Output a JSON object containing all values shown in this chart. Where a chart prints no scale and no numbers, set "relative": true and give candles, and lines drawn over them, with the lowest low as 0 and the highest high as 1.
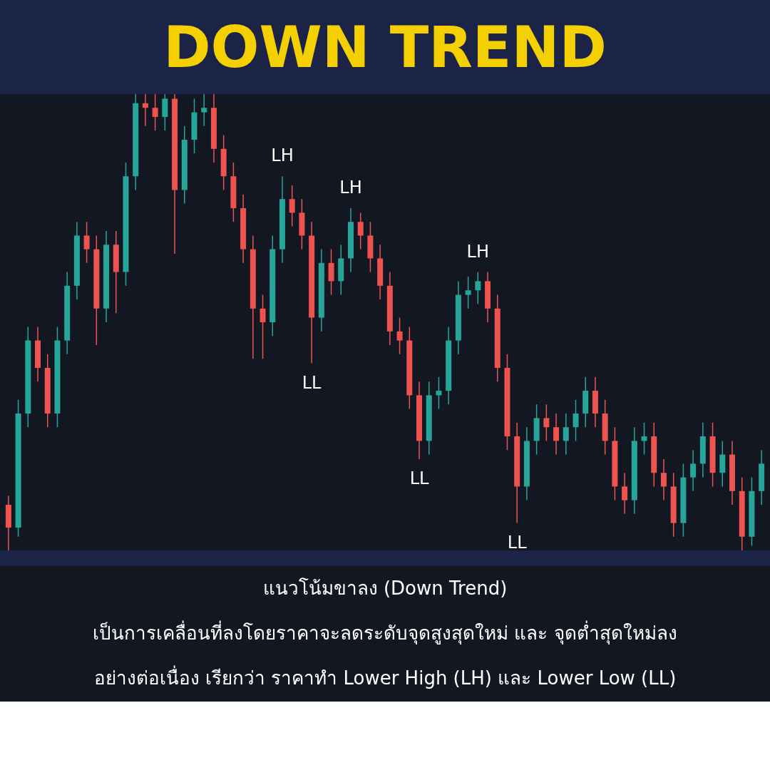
{
  "chart_data": {
    "type": "candlestick",
    "title": "DOWN TREND",
    "relative": true,
    "categories": [
      null,
      null,
      null,
      null,
      null,
      null,
      null,
      null,
      null,
      null,
      null,
      null,
      null,
      null,
      null,
      null,
      null,
      null,
      null,
      null,
      null,
      null,
      null,
      null,
      null,
      null,
      null,
      null,
      null,
      null,
      null,
      null,
      null,
      null,
      null,
      null,
      null,
      null,
      null,
      null,
      null,
      null,
      null,
      null,
      null,
      null,
      null,
      null,
      null,
      null,
      null,
      null,
      null,
      null,
      null,
      null,
      null,
      null,
      null,
      null,
      null,
      null,
      null,
      null,
      null,
      null,
      null,
      null,
      null,
      null,
      null,
      null,
      null,
      null,
      null,
      null,
      null,
      null
    ],
    "ohlc": [
      [
        0.1,
        0.12,
        0.0,
        0.05
      ],
      [
        0.05,
        0.33,
        0.03,
        0.3
      ],
      [
        0.3,
        0.49,
        0.27,
        0.46
      ],
      [
        0.46,
        0.49,
        0.37,
        0.4
      ],
      [
        0.4,
        0.43,
        0.27,
        0.3
      ],
      [
        0.3,
        0.49,
        0.27,
        0.46
      ],
      [
        0.46,
        0.61,
        0.43,
        0.58
      ],
      [
        0.58,
        0.72,
        0.55,
        0.69
      ],
      [
        0.69,
        0.72,
        0.63,
        0.66
      ],
      [
        0.66,
        0.69,
        0.45,
        0.53
      ],
      [
        0.53,
        0.7,
        0.5,
        0.67
      ],
      [
        0.67,
        0.7,
        0.52,
        0.61
      ],
      [
        0.61,
        0.85,
        0.58,
        0.82
      ],
      [
        0.82,
        1.0,
        0.79,
        0.98
      ],
      [
        0.98,
        1.0,
        0.93,
        0.97
      ],
      [
        0.97,
        1.0,
        0.92,
        0.95
      ],
      [
        0.95,
        1.0,
        0.92,
        0.99
      ],
      [
        0.99,
        1.0,
        0.65,
        0.79
      ],
      [
        0.79,
        0.93,
        0.76,
        0.9
      ],
      [
        0.9,
        0.99,
        0.87,
        0.96
      ],
      [
        0.96,
        1.0,
        0.93,
        0.97
      ],
      [
        0.97,
        1.0,
        0.85,
        0.88
      ],
      [
        0.88,
        0.91,
        0.79,
        0.82
      ],
      [
        0.82,
        0.85,
        0.72,
        0.75
      ],
      [
        0.75,
        0.78,
        0.63,
        0.66
      ],
      [
        0.66,
        0.69,
        0.42,
        0.53
      ],
      [
        0.53,
        0.56,
        0.42,
        0.5
      ],
      [
        0.5,
        0.69,
        0.47,
        0.66
      ],
      [
        0.66,
        0.82,
        0.63,
        0.77
      ],
      [
        0.77,
        0.8,
        0.71,
        0.74
      ],
      [
        0.74,
        0.77,
        0.66,
        0.69
      ],
      [
        0.69,
        0.72,
        0.41,
        0.51
      ],
      [
        0.51,
        0.66,
        0.48,
        0.63
      ],
      [
        0.63,
        0.66,
        0.56,
        0.59
      ],
      [
        0.59,
        0.67,
        0.56,
        0.64
      ],
      [
        0.64,
        0.75,
        0.61,
        0.72
      ],
      [
        0.72,
        0.74,
        0.66,
        0.69
      ],
      [
        0.69,
        0.72,
        0.61,
        0.64
      ],
      [
        0.64,
        0.67,
        0.55,
        0.58
      ],
      [
        0.58,
        0.61,
        0.45,
        0.48
      ],
      [
        0.48,
        0.51,
        0.43,
        0.46
      ],
      [
        0.46,
        0.49,
        0.31,
        0.34
      ],
      [
        0.34,
        0.37,
        0.2,
        0.24
      ],
      [
        0.24,
        0.37,
        0.21,
        0.34
      ],
      [
        0.34,
        0.38,
        0.31,
        0.35
      ],
      [
        0.35,
        0.49,
        0.32,
        0.46
      ],
      [
        0.46,
        0.59,
        0.43,
        0.56
      ],
      [
        0.56,
        0.6,
        0.53,
        0.57
      ],
      [
        0.57,
        0.61,
        0.54,
        0.59
      ],
      [
        0.59,
        0.61,
        0.5,
        0.53
      ],
      [
        0.53,
        0.56,
        0.37,
        0.4
      ],
      [
        0.4,
        0.43,
        0.22,
        0.25
      ],
      [
        0.25,
        0.28,
        0.06,
        0.14
      ],
      [
        0.14,
        0.27,
        0.11,
        0.24
      ],
      [
        0.24,
        0.32,
        0.21,
        0.29
      ],
      [
        0.29,
        0.32,
        0.24,
        0.27
      ],
      [
        0.27,
        0.3,
        0.21,
        0.24
      ],
      [
        0.24,
        0.3,
        0.21,
        0.27
      ],
      [
        0.27,
        0.33,
        0.24,
        0.3
      ],
      [
        0.3,
        0.38,
        0.27,
        0.35
      ],
      [
        0.35,
        0.38,
        0.27,
        0.3
      ],
      [
        0.3,
        0.33,
        0.21,
        0.24
      ],
      [
        0.24,
        0.27,
        0.11,
        0.14
      ],
      [
        0.14,
        0.17,
        0.08,
        0.11
      ],
      [
        0.11,
        0.27,
        0.08,
        0.24
      ],
      [
        0.24,
        0.28,
        0.21,
        0.25
      ],
      [
        0.25,
        0.28,
        0.14,
        0.17
      ],
      [
        0.17,
        0.2,
        0.11,
        0.14
      ],
      [
        0.14,
        0.17,
        0.03,
        0.06
      ],
      [
        0.06,
        0.19,
        0.03,
        0.16
      ],
      [
        0.16,
        0.22,
        0.13,
        0.19
      ],
      [
        0.19,
        0.28,
        0.16,
        0.25
      ],
      [
        0.25,
        0.28,
        0.14,
        0.17
      ],
      [
        0.17,
        0.24,
        0.14,
        0.21
      ],
      [
        0.21,
        0.24,
        0.1,
        0.13
      ],
      [
        0.13,
        0.16,
        0.0,
        0.03
      ],
      [
        0.03,
        0.16,
        0.01,
        0.13
      ],
      [
        0.13,
        0.22,
        0.1,
        0.19
      ]
    ],
    "annotations": [
      {
        "text": "LH",
        "y": 0.82
      },
      {
        "text": "LL",
        "y": 0.41
      },
      {
        "text": "LH",
        "y": 0.75
      },
      {
        "text": "LL",
        "y": 0.2
      },
      {
        "text": "LH",
        "y": 0.61
      },
      {
        "text": "LL",
        "y": 0.06
      },
      "แนวโน้มขาลง (Down Trend)",
      "เป็นการเคลื่อนที่ลงโดยราคาจะลดระดับจุดสูงสุดใหม่ และ จุดต่ำสุดใหม่ลง",
      "อย่างต่อเนื่อง เรียกว่า ราคาทำ Lower High (LH) และ Lower Low (LL)"
    ]
  }
}
